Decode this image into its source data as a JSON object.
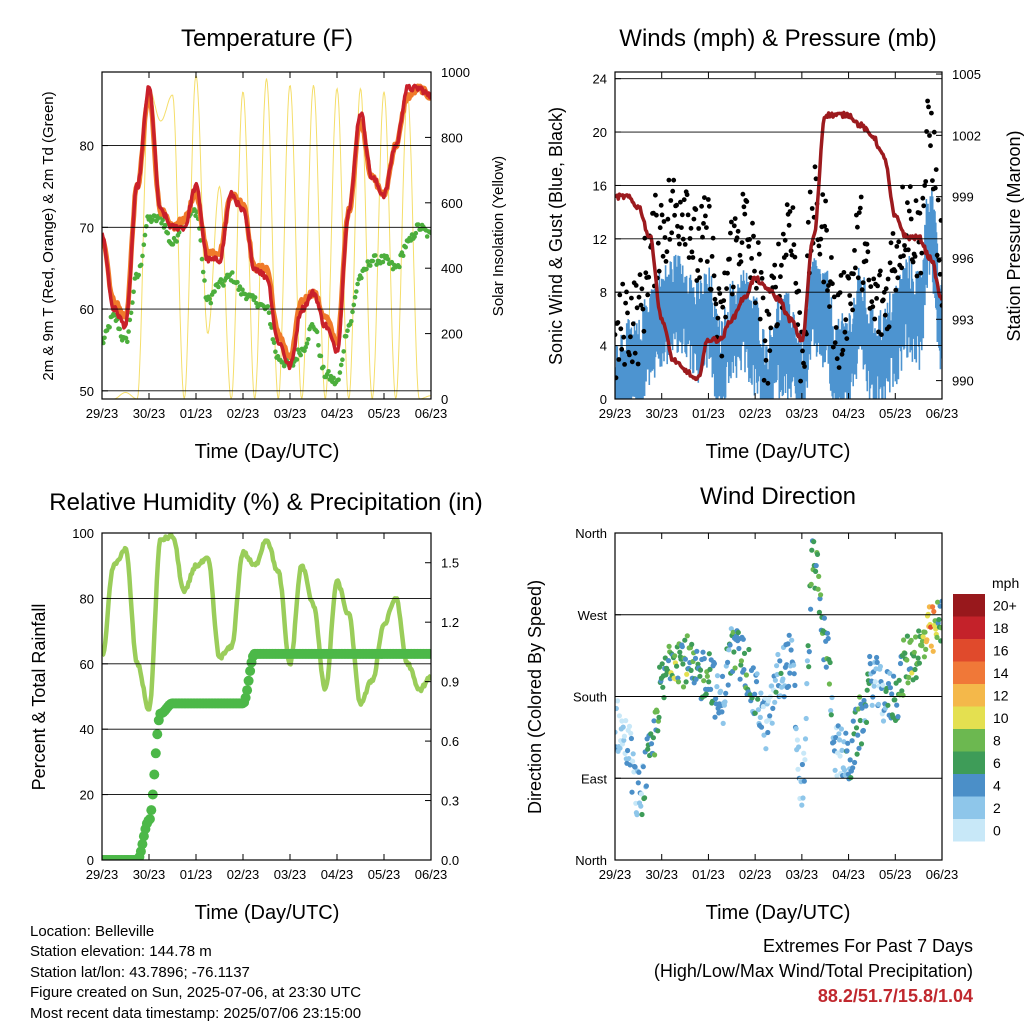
{
  "panels": {
    "temperature": {
      "title": "Temperature (F)",
      "xlabel": "Time (Day/UTC)",
      "ylabel_left": "2m & 9m T (Red, Orange) & 2m Td (Green)",
      "ylabel_right": "Solar Insolation (Yellow)",
      "yticks_left": [
        "50",
        "60",
        "70",
        "80"
      ],
      "yticks_right": [
        "0",
        "200",
        "400",
        "600",
        "800",
        "1000"
      ]
    },
    "winds": {
      "title": "Winds (mph) & Pressure (mb)",
      "xlabel": "Time (Day/UTC)",
      "ylabel_left": "Sonic Wind & Gust (Blue, Black)",
      "ylabel_right": "Station Pressure (Maroon)",
      "yticks_left": [
        "0",
        "4",
        "8",
        "12",
        "16",
        "20",
        "24"
      ],
      "yticks_right": [
        "990",
        "993",
        "996",
        "999",
        "1002",
        "1005"
      ]
    },
    "humidity": {
      "title": "Relative Humidity (%) & Precipitation (in)",
      "xlabel": "Time (Day/UTC)",
      "ylabel_left": "Percent & Total Rainfall",
      "yticks_left": [
        "0",
        "20",
        "40",
        "60",
        "80",
        "100"
      ],
      "yticks_right": [
        "0.0",
        "0.3",
        "0.6",
        "0.9",
        "1.2",
        "1.5"
      ]
    },
    "direction": {
      "title": "Wind Direction",
      "xlabel": "Time (Day/UTC)",
      "ylabel_left": "Direction (Colored By Speed)",
      "yticks_left": [
        "North",
        "East",
        "South",
        "West",
        "North"
      ],
      "legend_title": "mph",
      "legend_labels": [
        "0",
        "2",
        "4",
        "6",
        "8",
        "10",
        "12",
        "14",
        "16",
        "18",
        "20+"
      ],
      "legend_colors": [
        "#c8e8f8",
        "#8ec6ea",
        "#4b8fc8",
        "#3e9c58",
        "#6cb850",
        "#e4e050",
        "#f4b84a",
        "#f07838",
        "#e04a2c",
        "#c4222a",
        "#98181c"
      ]
    }
  },
  "x_tick_labels": [
    "29/23",
    "30/23",
    "01/23",
    "02/23",
    "03/23",
    "04/23",
    "05/23",
    "06/23"
  ],
  "info": {
    "location": "Location: Belleville",
    "elevation": "Station elevation: 144.78 m",
    "latlon": "Station lat/lon: 43.7896; -76.1137",
    "created": "Figure created on Sun, 2025-07-06, at 23:30 UTC",
    "recent": "Most recent data timestamp: 2025/07/06 23:15:00"
  },
  "extremes": {
    "title": "Extremes For Past 7 Days",
    "subtitle": "(High/Low/Max Wind/Total Precipitation)",
    "values": "88.2/51.7/15.8/1.04"
  },
  "colors": {
    "temp2m": "#c9202a",
    "temp9m": "#f07a2a",
    "dewpoint": "#4cae3c",
    "insolation": "#f5de6a",
    "gust": "#000000",
    "wind": "#4d94d0",
    "pressure": "#9c1a1e",
    "rh": "#9acd5a",
    "rain": "#4cb848"
  },
  "chart_data": [
    {
      "type": "line",
      "title": "Temperature (F)",
      "xlabel": "Time (Day/UTC)",
      "ylabel": "2m & 9m T (Red, Orange) & 2m Td (Green)",
      "ylim": [
        49,
        89
      ],
      "y2lim": [
        0,
        1000
      ],
      "x": [
        0,
        0.25,
        0.5,
        0.75,
        1,
        1.25,
        1.5,
        1.75,
        2,
        2.25,
        2.5,
        2.75,
        3,
        3.25,
        3.5,
        3.75,
        4,
        4.25,
        4.5,
        4.75,
        5,
        5.25,
        5.5,
        5.75,
        6,
        6.25,
        6.5,
        6.75,
        7
      ],
      "series": [
        {
          "name": "2m T",
          "values": [
            69,
            60,
            58,
            75,
            87,
            72,
            70,
            70,
            75,
            66,
            66,
            74,
            72,
            65,
            64,
            56,
            53,
            60,
            62,
            58,
            55,
            72,
            84,
            76,
            74,
            80,
            87,
            87,
            86
          ]
        },
        {
          "name": "9m T",
          "values": [
            69,
            61,
            59,
            75,
            86,
            72,
            70,
            71,
            74,
            67,
            67,
            74,
            73,
            65,
            65,
            57,
            54,
            61,
            62,
            59,
            56,
            72,
            83,
            76,
            74,
            80,
            86,
            87,
            86
          ]
        },
        {
          "name": "2m Td",
          "values": [
            56,
            59,
            56,
            64,
            71,
            71,
            68,
            71,
            72,
            61,
            63,
            64,
            62,
            61,
            60,
            54,
            53,
            55,
            58,
            52,
            51,
            58,
            64,
            66,
            66,
            65,
            68,
            70,
            69
          ]
        },
        {
          "name": "Solar Insolation",
          "axis": "right",
          "values": [
            0,
            0,
            20,
            0,
            950,
            850,
            930,
            0,
            990,
            200,
            650,
            0,
            940,
            0,
            980,
            0,
            960,
            0,
            960,
            0,
            950,
            0,
            950,
            0,
            940,
            0,
            930,
            0,
            10
          ]
        }
      ]
    },
    {
      "type": "line",
      "title": "Winds (mph) & Pressure (mb)",
      "xlabel": "Time (Day/UTC)",
      "ylabel": "Sonic Wind & Gust (Blue, Black)",
      "ylim": [
        0,
        24.5
      ],
      "y2lim": [
        989.1,
        1005.1
      ],
      "x": [
        0,
        0.25,
        0.5,
        0.75,
        1,
        1.25,
        1.5,
        1.75,
        2,
        2.25,
        2.5,
        2.75,
        3,
        3.25,
        3.5,
        3.75,
        4,
        4.25,
        4.5,
        4.75,
        5,
        5.25,
        5.5,
        5.75,
        6,
        6.25,
        6.5,
        6.75,
        7
      ],
      "series": [
        {
          "name": "Wind",
          "values": [
            2,
            3,
            3,
            6,
            7,
            8,
            8,
            6,
            7,
            3,
            6,
            7,
            5,
            2,
            5,
            5,
            2,
            8,
            7,
            3,
            4,
            7,
            4,
            4,
            6,
            8,
            7,
            14,
            6
          ]
        },
        {
          "name": "Gust",
          "values": [
            4,
            6,
            6,
            11,
            13,
            14,
            15,
            11,
            12,
            5,
            11,
            13,
            10,
            4,
            9,
            14,
            4,
            14,
            12,
            5,
            8,
            12,
            7,
            7,
            11,
            14,
            12,
            20,
            10
          ]
        },
        {
          "name": "Station Pressure",
          "axis": "right",
          "values": [
            999,
            999,
            998.5,
            997,
            993,
            991,
            990.5,
            990,
            992,
            992,
            993,
            994,
            995,
            994.5,
            994,
            993,
            992,
            997,
            1003,
            1003,
            1003,
            1002.5,
            1002,
            1001,
            998,
            997,
            997,
            996,
            994
          ]
        }
      ]
    },
    {
      "type": "line",
      "title": "Relative Humidity (%) & Precipitation (in)",
      "xlabel": "Time (Day/UTC)",
      "ylabel": "Percent & Total Rainfall",
      "ylim": [
        0,
        100
      ],
      "y2lim": [
        0,
        1.65
      ],
      "x": [
        0,
        0.25,
        0.5,
        0.75,
        1,
        1.25,
        1.5,
        1.75,
        2,
        2.25,
        2.5,
        2.75,
        3,
        3.25,
        3.5,
        3.75,
        4,
        4.25,
        4.5,
        4.75,
        5,
        5.25,
        5.5,
        5.75,
        6,
        6.25,
        6.5,
        6.75,
        7
      ],
      "series": [
        {
          "name": "Relative Humidity",
          "values": [
            62,
            90,
            95,
            60,
            46,
            98,
            99,
            82,
            90,
            92,
            62,
            65,
            94,
            90,
            98,
            88,
            60,
            90,
            78,
            52,
            85,
            75,
            48,
            55,
            72,
            80,
            60,
            52,
            56
          ]
        },
        {
          "name": "Total Rainfall",
          "axis": "right",
          "values": [
            0,
            0,
            0,
            0,
            0.2,
            0.74,
            0.79,
            0.79,
            0.79,
            0.79,
            0.79,
            0.79,
            0.79,
            1.04,
            1.04,
            1.04,
            1.04,
            1.04,
            1.04,
            1.04,
            1.04,
            1.04,
            1.04,
            1.04,
            1.04,
            1.04,
            1.04,
            1.04,
            1.04
          ]
        }
      ]
    },
    {
      "type": "scatter",
      "title": "Wind Direction",
      "xlabel": "Time (Day/UTC)",
      "ylabel": "Direction (Colored By Speed)",
      "ylim": [
        0,
        360
      ],
      "x": [
        0,
        0.25,
        0.5,
        0.75,
        1,
        1.25,
        1.5,
        1.75,
        2,
        2.25,
        2.5,
        2.75,
        3,
        3.25,
        3.5,
        3.75,
        4,
        4.25,
        4.5,
        4.75,
        5,
        5.25,
        5.5,
        5.75,
        6,
        6.25,
        6.5,
        6.75,
        7
      ],
      "series": [
        {
          "name": "Direction",
          "values": [
            150,
            130,
            70,
            110,
            190,
            230,
            220,
            200,
            210,
            170,
            230,
            220,
            180,
            150,
            200,
            220,
            80,
            330,
            240,
            120,
            110,
            150,
            200,
            180,
            180,
            220,
            230,
            250,
            260
          ]
        },
        {
          "name": "Speed",
          "values": [
            2,
            3,
            3,
            6,
            7,
            8,
            8,
            6,
            7,
            3,
            6,
            7,
            5,
            2,
            5,
            5,
            2,
            8,
            7,
            3,
            4,
            7,
            4,
            4,
            6,
            8,
            7,
            14,
            6
          ]
        }
      ]
    }
  ]
}
